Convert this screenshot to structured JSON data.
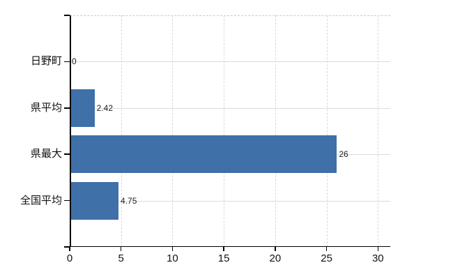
{
  "chart_data": {
    "type": "bar",
    "orientation": "horizontal",
    "title": "",
    "xlabel": "",
    "ylabel": "",
    "categories": [
      "日野町",
      "県平均",
      "県最大",
      "全国平均"
    ],
    "values": [
      0,
      2.42,
      26,
      4.75
    ],
    "value_labels": [
      "0",
      "2.42",
      "26",
      "4.75"
    ],
    "x_ticks": [
      0,
      5,
      10,
      15,
      20,
      25,
      30
    ],
    "x_tick_labels": [
      "0",
      "5",
      "10",
      "15",
      "20",
      "25",
      "30"
    ],
    "xlim": [
      0,
      31.2
    ],
    "grid": true,
    "legend": false,
    "colors": {
      "bar_fill": "#3F70A8",
      "axis": "#000000",
      "vertical_gridline": "#d8d8d8",
      "horizontal_gridline": "#d8dcd8",
      "plot_top_border": "#c9c9c9",
      "category_label": "#111111",
      "tick_label": "#111111",
      "value_label": "#222222",
      "background": "#ffffff"
    }
  }
}
